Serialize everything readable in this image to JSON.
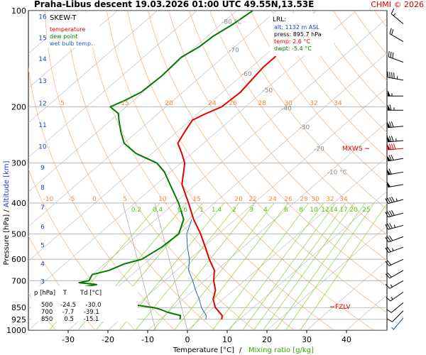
{
  "header": {
    "title": "Praha-Libus   descent   19.03.2026 01:00 UTC  49.55N,13.53E",
    "credit": "CHMI © 2026",
    "credit_color": "#d40000"
  },
  "legend": {
    "title": "SKEW-T",
    "items": [
      {
        "label": "temperature",
        "color": "#e00000"
      },
      {
        "label": "dew point",
        "color": "#007a00"
      },
      {
        "label": "wet bulb temp.",
        "color": "#1e62c8"
      }
    ]
  },
  "lrl_box": {
    "title": "LRL:",
    "lines": [
      {
        "text": "alt: 1132 m ASL",
        "color": "#1e3ccc"
      },
      {
        "text": "press: 895.7 hPa",
        "color": "#000000"
      },
      {
        "text": "temp: 2.6 °C",
        "color": "#e00000"
      },
      {
        "text": "dwpt: -5.4 °C",
        "color": "#007a00"
      }
    ]
  },
  "table": {
    "header": "p [hPa]    T       Td [°C]",
    "rows": [
      "500    -24.5     -30.0",
      "700     -7.7     -39.1",
      "850      0.5     -15.1"
    ]
  },
  "markers": {
    "mxws": "MXWS",
    "fzlv": "FZLV",
    "color": "#e00000"
  },
  "chart_data": {
    "type": "line",
    "subtype": "skew-t log-p",
    "xlabel": "Temperature [°C]",
    "xlabel2": "Mixing ratio [g/kg]",
    "ylabel": "Pressure [hPa]",
    "ylabel2": "Altitude [km]",
    "xlim": [
      -35,
      45
    ],
    "ylim": [
      1000,
      100
    ],
    "y_scale": "log",
    "x_ticks": [
      -30,
      -20,
      -10,
      0,
      10,
      20,
      30,
      40
    ],
    "p_ticks": [
      100,
      200,
      300,
      400,
      500,
      600,
      700,
      850,
      925,
      1000
    ],
    "km_ticks": [
      {
        "label": "16",
        "p": 104
      },
      {
        "label": "15",
        "p": 121
      },
      {
        "label": "14",
        "p": 141
      },
      {
        "label": "13",
        "p": 165
      },
      {
        "label": "12",
        "p": 194
      },
      {
        "label": "11",
        "p": 227
      },
      {
        "label": "10",
        "p": 265
      },
      {
        "label": "9",
        "p": 308
      },
      {
        "label": "8",
        "p": 356
      },
      {
        "label": "7",
        "p": 411
      },
      {
        "label": "6",
        "p": 472
      },
      {
        "label": "5",
        "p": 540
      },
      {
        "label": "4",
        "p": 616
      },
      {
        "label": "3",
        "p": 701
      },
      {
        "label": "2",
        "p": 795
      }
    ],
    "isotherm_labels": [
      {
        "label": "-80 °C",
        "p": 110
      },
      {
        "label": "-70",
        "p": 135
      },
      {
        "label": "-60",
        "p": 160
      },
      {
        "label": "-50",
        "p": 180
      },
      {
        "label": "-40",
        "p": 205
      },
      {
        "label": "-30",
        "p": 235
      },
      {
        "label": "-20",
        "p": 275
      },
      {
        "label": "-10 °C",
        "p": 325
      }
    ],
    "theta_labels_top": [
      "5",
      "15",
      "20",
      "24",
      "26",
      "28",
      "30",
      "32",
      "34"
    ],
    "theta_labels_mid": [
      "-10",
      "-5",
      "0",
      "5",
      "10",
      "15",
      "20",
      "22",
      "24",
      "26",
      "28",
      "30",
      "32",
      "34"
    ],
    "mixing_ratio_labels": [
      "0.2",
      "0.4",
      "0.6",
      "1",
      "1.4",
      "2",
      "3",
      "4",
      "6",
      "8",
      "10",
      "12",
      "14",
      "17",
      "20",
      "25"
    ],
    "series": [
      {
        "name": "temperature",
        "color": "#e00000",
        "points": [
          [
            925,
            5.5
          ],
          [
            900,
            4.5
          ],
          [
            850,
            0.5
          ],
          [
            800,
            -2.5
          ],
          [
            750,
            -4.5
          ],
          [
            700,
            -7.7
          ],
          [
            650,
            -10.5
          ],
          [
            600,
            -15.0
          ],
          [
            550,
            -19.5
          ],
          [
            500,
            -24.5
          ],
          [
            450,
            -30.5
          ],
          [
            400,
            -36.5
          ],
          [
            350,
            -43.5
          ],
          [
            300,
            -49.0
          ],
          [
            280,
            -52.5
          ],
          [
            260,
            -56.5
          ],
          [
            240,
            -58.0
          ],
          [
            220,
            -59.5
          ],
          [
            210,
            -58.0
          ],
          [
            200,
            -56.0
          ],
          [
            180,
            -55.5
          ],
          [
            160,
            -56.5
          ],
          [
            150,
            -57.0
          ],
          [
            140,
            -57.0
          ],
          [
            130,
            -58.0
          ],
          [
            120,
            -59.0
          ],
          [
            110,
            -60.5
          ],
          [
            105,
            -61.5
          ]
        ]
      },
      {
        "name": "dew point",
        "color": "#007a00",
        "points": [
          [
            925,
            -5.0
          ],
          [
            900,
            -6.0
          ],
          [
            880,
            -10.0
          ],
          [
            860,
            -13.0
          ],
          [
            850,
            -15.1
          ],
          [
            820,
            -25.0
          ],
          [
            800,
            -30.0
          ],
          [
            780,
            -33.0
          ],
          [
            760,
            -36.0
          ],
          [
            740,
            -40.0
          ],
          [
            720,
            -36.0
          ],
          [
            710,
            -41.0
          ],
          [
            700,
            -39.1
          ],
          [
            670,
            -40.0
          ],
          [
            650,
            -37.0
          ],
          [
            620,
            -35.0
          ],
          [
            600,
            -32.0
          ],
          [
            550,
            -30.5
          ],
          [
            500,
            -30.0
          ],
          [
            450,
            -33.0
          ],
          [
            400,
            -39.0
          ],
          [
            350,
            -46.5
          ],
          [
            320,
            -51.5
          ],
          [
            300,
            -56.0
          ],
          [
            280,
            -64.0
          ],
          [
            260,
            -70.0
          ],
          [
            240,
            -74.0
          ],
          [
            220,
            -78.0
          ],
          [
            210,
            -80.0
          ],
          [
            200,
            -84.0
          ],
          [
            190,
            -82.0
          ],
          [
            180,
            -80.5
          ],
          [
            160,
            -80.0
          ],
          [
            140,
            -80.5
          ],
          [
            130,
            -79.0
          ],
          [
            120,
            -78.5
          ],
          [
            110,
            -77.0
          ],
          [
            100,
            -76.0
          ]
        ]
      },
      {
        "name": "wet bulb temp.",
        "color": "#1e62c8",
        "points": [
          [
            925,
            1.5
          ],
          [
            900,
            0.5
          ],
          [
            850,
            -3.0
          ],
          [
            800,
            -6.0
          ],
          [
            750,
            -9.5
          ],
          [
            700,
            -13.0
          ],
          [
            650,
            -17.0
          ],
          [
            600,
            -20.0
          ],
          [
            550,
            -24.0
          ],
          [
            500,
            -28.0
          ],
          [
            450,
            -31.0
          ]
        ]
      }
    ],
    "wind_barbs": [
      {
        "p": 110,
        "dir": 310,
        "kt": 15
      },
      {
        "p": 125,
        "dir": 300,
        "kt": 20
      },
      {
        "p": 145,
        "dir": 290,
        "kt": 30
      },
      {
        "p": 165,
        "dir": 280,
        "kt": 45
      },
      {
        "p": 185,
        "dir": 270,
        "kt": 55
      },
      {
        "p": 205,
        "dir": 270,
        "kt": 65
      },
      {
        "p": 230,
        "dir": 265,
        "kt": 70
      },
      {
        "p": 255,
        "dir": 265,
        "kt": 75
      },
      {
        "p": 270,
        "dir": 265,
        "kt": 80,
        "color": "#e00000"
      },
      {
        "p": 290,
        "dir": 260,
        "kt": 70
      },
      {
        "p": 320,
        "dir": 260,
        "kt": 60
      },
      {
        "p": 350,
        "dir": 260,
        "kt": 50
      },
      {
        "p": 390,
        "dir": 255,
        "kt": 45
      },
      {
        "p": 430,
        "dir": 255,
        "kt": 40
      },
      {
        "p": 470,
        "dir": 255,
        "kt": 35
      },
      {
        "p": 510,
        "dir": 250,
        "kt": 30
      },
      {
        "p": 550,
        "dir": 250,
        "kt": 25
      },
      {
        "p": 600,
        "dir": 245,
        "kt": 20
      },
      {
        "p": 650,
        "dir": 240,
        "kt": 20
      },
      {
        "p": 700,
        "dir": 240,
        "kt": 15
      },
      {
        "p": 760,
        "dir": 235,
        "kt": 15
      },
      {
        "p": 820,
        "dir": 230,
        "kt": 10
      },
      {
        "p": 870,
        "dir": 225,
        "kt": 10
      },
      {
        "p": 915,
        "dir": 220,
        "kt": 5,
        "color": "#1e3ccc"
      }
    ],
    "mxws_p": 270,
    "fzlv_p": 845,
    "lrl_p": 895.7
  }
}
